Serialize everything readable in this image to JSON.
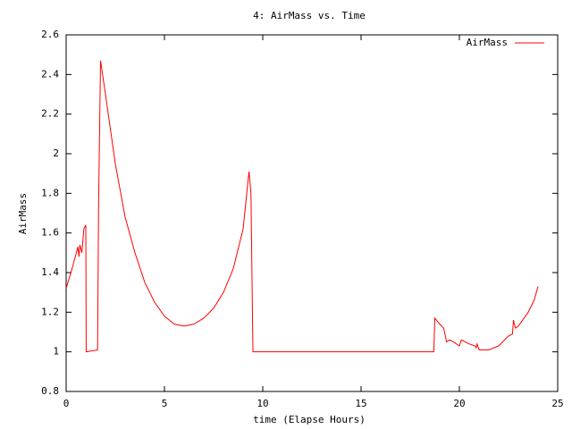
{
  "chart_data": {
    "type": "line",
    "title": "4: AirMass vs. Time",
    "x_label": "time (Elapse Hours)",
    "y_label": "AirMass",
    "xlim": [
      0,
      25
    ],
    "ylim": [
      0.8,
      2.6
    ],
    "xticks": [
      0,
      5,
      10,
      15,
      20,
      25
    ],
    "yticks": [
      0.8,
      1,
      1.2,
      1.4,
      1.6,
      1.8,
      2,
      2.2,
      2.4,
      2.6
    ],
    "legend": "upper right",
    "series": [
      {
        "name": "AirMass",
        "color": "#ff0000",
        "x": [
          0,
          0.3,
          0.6,
          0.65,
          0.7,
          0.8,
          0.9,
          1.0,
          1.02,
          1.6,
          1.65,
          1.75,
          2.0,
          2.5,
          3.0,
          3.5,
          4.0,
          4.5,
          5.0,
          5.5,
          6.0,
          6.5,
          7.0,
          7.5,
          8.0,
          8.5,
          9.0,
          9.3,
          9.4,
          9.5,
          18.7,
          18.75,
          19.0,
          19.2,
          19.35,
          19.5,
          19.7,
          20.0,
          20.1,
          20.5,
          20.8,
          20.85,
          20.9,
          21.0,
          21.5,
          22.0,
          22.5,
          22.7,
          22.75,
          22.85,
          23.0,
          23.5,
          23.8,
          24.0
        ],
        "values": [
          1.32,
          1.42,
          1.53,
          1.48,
          1.54,
          1.5,
          1.62,
          1.64,
          1.0,
          1.01,
          1.74,
          2.47,
          2.3,
          1.95,
          1.68,
          1.5,
          1.35,
          1.25,
          1.18,
          1.14,
          1.13,
          1.14,
          1.17,
          1.22,
          1.3,
          1.42,
          1.62,
          1.91,
          1.8,
          1.0,
          1.0,
          1.17,
          1.14,
          1.12,
          1.05,
          1.06,
          1.05,
          1.03,
          1.06,
          1.04,
          1.03,
          1.02,
          1.04,
          1.01,
          1.01,
          1.03,
          1.08,
          1.09,
          1.16,
          1.12,
          1.13,
          1.2,
          1.26,
          1.33
        ]
      }
    ]
  }
}
